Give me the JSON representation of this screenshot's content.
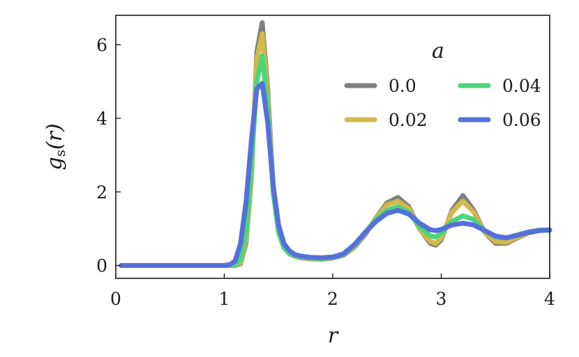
{
  "chart_data": {
    "type": "line",
    "title": "",
    "xlabel": "r",
    "ylabel_main": "g",
    "ylabel_sub": "s",
    "ylabel_arg": "(r)",
    "xlim": [
      0,
      4
    ],
    "ylim": [
      -0.35,
      6.8
    ],
    "xticks": [
      0,
      1,
      2,
      3,
      4
    ],
    "yticks": [
      0,
      2,
      4,
      6
    ],
    "grid": false,
    "legend": {
      "title": "a",
      "placement": "top-right",
      "columns": 2
    },
    "x": [
      0.05,
      0.1,
      0.2,
      0.3,
      0.4,
      0.5,
      0.6,
      0.7,
      0.8,
      0.9,
      1.0,
      1.05,
      1.1,
      1.15,
      1.2,
      1.25,
      1.3,
      1.35,
      1.4,
      1.45,
      1.5,
      1.55,
      1.6,
      1.65,
      1.7,
      1.8,
      1.9,
      2.0,
      2.1,
      2.2,
      2.3,
      2.4,
      2.5,
      2.6,
      2.7,
      2.8,
      2.9,
      2.95,
      3.0,
      3.1,
      3.2,
      3.3,
      3.4,
      3.5,
      3.6,
      3.7,
      3.8,
      3.9,
      4.0
    ],
    "series": [
      {
        "name": "0.0",
        "color": "#808080",
        "values": [
          0,
          0,
          0,
          0,
          0,
          0,
          0,
          0,
          0,
          0,
          0,
          0,
          0,
          0.05,
          0.6,
          2.4,
          5.8,
          6.6,
          4.8,
          2.2,
          1.0,
          0.5,
          0.32,
          0.25,
          0.21,
          0.18,
          0.17,
          0.2,
          0.28,
          0.5,
          0.85,
          1.3,
          1.7,
          1.85,
          1.6,
          1.0,
          0.6,
          0.55,
          0.7,
          1.5,
          1.9,
          1.5,
          0.9,
          0.6,
          0.6,
          0.75,
          0.88,
          0.95,
          0.97
        ]
      },
      {
        "name": "0.02",
        "color": "#d4b84a",
        "values": [
          0,
          0,
          0,
          0,
          0,
          0,
          0,
          0,
          0,
          0,
          0,
          0,
          0.01,
          0.08,
          0.7,
          2.5,
          5.6,
          6.3,
          4.6,
          2.1,
          0.95,
          0.5,
          0.33,
          0.26,
          0.22,
          0.19,
          0.18,
          0.21,
          0.29,
          0.52,
          0.88,
          1.28,
          1.65,
          1.75,
          1.55,
          1.0,
          0.65,
          0.6,
          0.75,
          1.45,
          1.75,
          1.45,
          0.9,
          0.65,
          0.63,
          0.77,
          0.89,
          0.95,
          0.97
        ]
      },
      {
        "name": "0.04",
        "color": "#4cd57a",
        "values": [
          0,
          0,
          0,
          0,
          0,
          0,
          0,
          0,
          0,
          0,
          0,
          0,
          0.02,
          0.15,
          0.9,
          2.7,
          5.0,
          5.7,
          4.3,
          2.0,
          0.9,
          0.48,
          0.33,
          0.27,
          0.23,
          0.2,
          0.19,
          0.22,
          0.3,
          0.55,
          0.9,
          1.25,
          1.5,
          1.6,
          1.45,
          1.05,
          0.8,
          0.78,
          0.88,
          1.2,
          1.35,
          1.25,
          0.95,
          0.78,
          0.75,
          0.83,
          0.91,
          0.96,
          0.97
        ]
      },
      {
        "name": "0.06",
        "color": "#5570dc",
        "values": [
          0,
          0,
          0,
          0,
          0,
          0,
          0,
          0,
          0,
          0,
          0,
          0.02,
          0.12,
          0.6,
          1.7,
          3.4,
          4.8,
          4.95,
          3.9,
          2.2,
          1.1,
          0.6,
          0.4,
          0.3,
          0.26,
          0.22,
          0.21,
          0.23,
          0.32,
          0.57,
          0.9,
          1.2,
          1.42,
          1.5,
          1.4,
          1.15,
          0.97,
          0.95,
          0.98,
          1.1,
          1.15,
          1.1,
          0.95,
          0.8,
          0.75,
          0.82,
          0.9,
          0.95,
          0.96
        ]
      }
    ]
  }
}
